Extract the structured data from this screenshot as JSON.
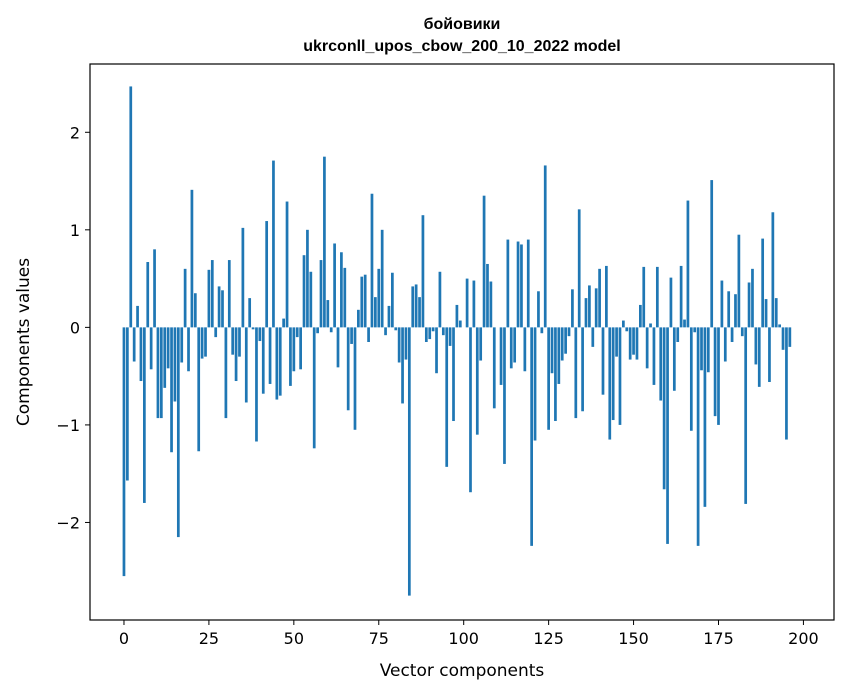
{
  "chart_data": {
    "type": "bar",
    "title_line1": "бойовики",
    "title_line2": "ukrconll_upos_cbow_200_10_2022 model",
    "xlabel": "Vector components",
    "ylabel": "Components values",
    "xlim": [
      -10,
      209
    ],
    "ylim": [
      -3.0,
      2.7
    ],
    "xticks": [
      0,
      25,
      50,
      75,
      100,
      125,
      150,
      175,
      200
    ],
    "xtick_labels": [
      "0",
      "25",
      "50",
      "75",
      "100",
      "125",
      "150",
      "175",
      "200"
    ],
    "yticks": [
      -2,
      -1,
      0,
      1,
      2
    ],
    "ytick_labels": [
      "−2",
      "−1",
      "0",
      "1",
      "2"
    ],
    "bar_color": "#1f77b4",
    "grid": false,
    "values": [
      -2.55,
      -1.57,
      2.47,
      -0.35,
      0.22,
      -0.55,
      -1.8,
      0.67,
      -0.43,
      0.8,
      -0.93,
      -0.93,
      -0.62,
      -0.42,
      -1.28,
      -0.76,
      -2.15,
      -0.36,
      0.6,
      -0.45,
      1.41,
      0.35,
      -1.27,
      -0.32,
      -0.3,
      0.59,
      0.69,
      -0.1,
      0.42,
      0.38,
      -0.93,
      0.69,
      -0.28,
      -0.55,
      -0.3,
      1.02,
      -0.77,
      0.3,
      -0.02,
      -1.17,
      -0.14,
      -0.68,
      1.09,
      -0.58,
      1.71,
      -0.74,
      -0.7,
      0.09,
      1.29,
      -0.6,
      -0.45,
      -0.1,
      -0.43,
      0.74,
      1.0,
      0.57,
      -1.24,
      -0.06,
      0.69,
      1.75,
      0.28,
      -0.05,
      0.86,
      -0.41,
      0.77,
      0.61,
      -0.85,
      -0.17,
      -1.05,
      0.18,
      0.52,
      0.54,
      -0.15,
      1.37,
      0.31,
      0.6,
      1.0,
      -0.08,
      0.22,
      0.56,
      -0.03,
      -0.36,
      -0.78,
      -0.33,
      -2.75,
      0.42,
      0.44,
      0.31,
      1.15,
      -0.15,
      -0.12,
      -0.04,
      -0.47,
      0.57,
      -0.08,
      -1.43,
      -0.19,
      -0.96,
      0.23,
      0.07,
      0.0,
      0.5,
      -1.69,
      0.48,
      -1.1,
      -0.34,
      1.35,
      0.65,
      0.47,
      -0.83,
      0.0,
      -0.59,
      -1.4,
      0.9,
      -0.42,
      -0.36,
      0.88,
      0.85,
      -0.45,
      0.9,
      -2.24,
      -1.16,
      0.37,
      -0.06,
      1.66,
      -1.05,
      -0.47,
      -0.96,
      -0.58,
      -0.34,
      -0.27,
      -0.09,
      0.39,
      -0.93,
      1.21,
      -0.86,
      0.3,
      0.43,
      -0.2,
      0.4,
      0.6,
      -0.69,
      0.63,
      -1.15,
      -0.95,
      -0.3,
      -1.0,
      0.07,
      -0.04,
      -0.33,
      -0.28,
      -0.33,
      0.23,
      0.62,
      -0.42,
      0.04,
      -0.59,
      0.62,
      -0.75,
      -1.66,
      -2.22,
      0.51,
      -0.65,
      -0.15,
      0.63,
      0.08,
      1.3,
      -1.06,
      -0.05,
      -2.24,
      -0.44,
      -1.84,
      -0.46,
      1.51,
      -0.91,
      -1.0,
      0.48,
      -0.35,
      0.37,
      -0.15,
      0.34,
      0.95,
      -0.09,
      -1.81,
      0.46,
      0.6,
      -0.38,
      -0.61,
      0.91,
      0.29,
      -0.56,
      1.18,
      0.3,
      0.03,
      -0.23,
      -1.15,
      -0.2
    ]
  }
}
